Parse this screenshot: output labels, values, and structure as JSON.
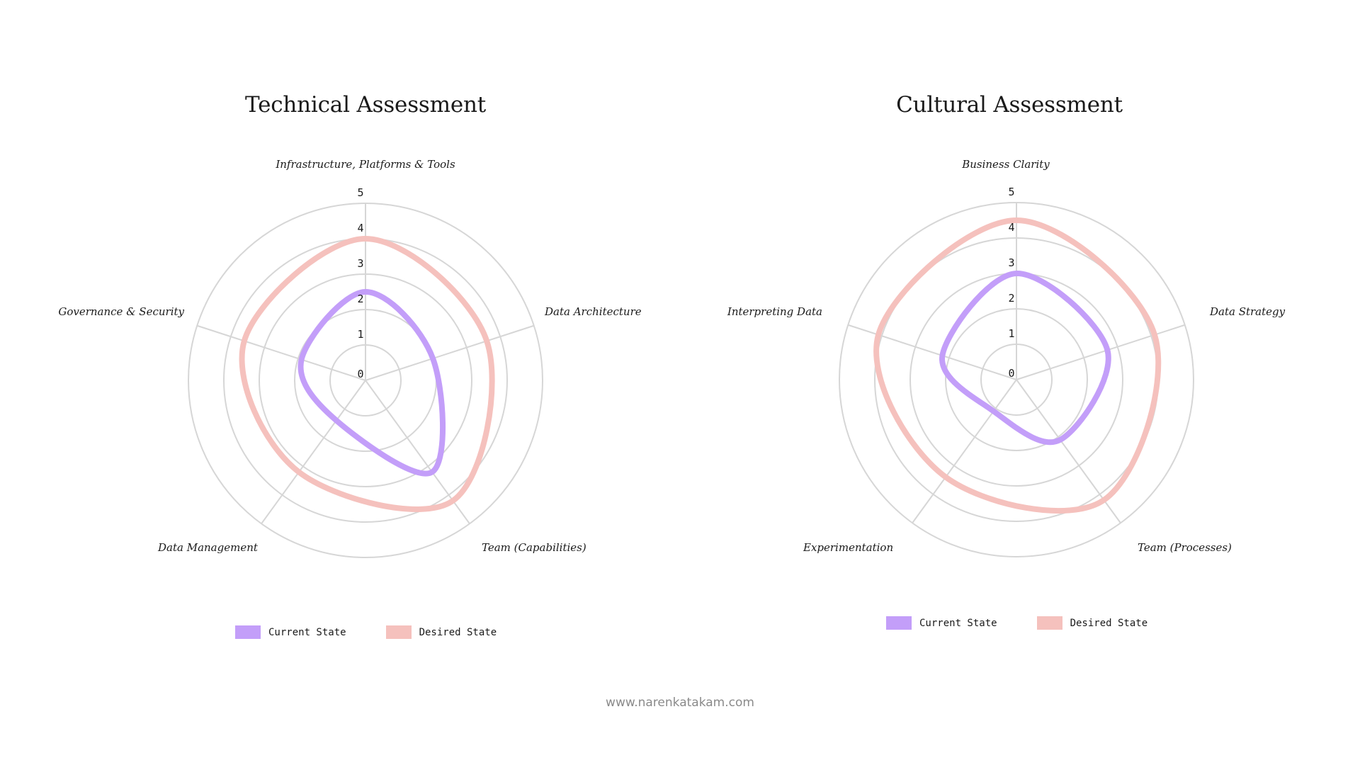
{
  "colors": {
    "current": "#c39ef9",
    "desired": "#f5c1bd",
    "grid": "#d6d6d6",
    "text": "#1a1a1a",
    "footer": "#8a8a8a"
  },
  "chart_data": [
    {
      "type": "radar",
      "title": "Technical Assessment",
      "axes": [
        "Infrastructure, Platforms & Tools",
        "Data Architecture",
        "Team (Capabilities)",
        "Data Management",
        "Governance & Security"
      ],
      "rlim": [
        0,
        5
      ],
      "ticks": [
        "0",
        "1",
        "2",
        "3",
        "4",
        "5"
      ],
      "grid": true,
      "legend_position": "bottom",
      "series": [
        {
          "name": "Current State",
          "values": [
            2.5,
            2.0,
            3.2,
            1.4,
            1.9
          ]
        },
        {
          "name": "Desired State",
          "values": [
            4.0,
            3.6,
            4.2,
            3.2,
            3.6
          ]
        }
      ]
    },
    {
      "type": "radar",
      "title": "Cultural Assessment",
      "axes": [
        "Business Clarity",
        "Data Strategy",
        "Team (Processes)",
        "Experimentation",
        "Interpreting Data"
      ],
      "rlim": [
        0,
        5
      ],
      "ticks": [
        "0",
        "1",
        "2",
        "3",
        "4",
        "5"
      ],
      "grid": true,
      "legend_position": "bottom",
      "series": [
        {
          "name": "Current State",
          "values": [
            3.0,
            2.7,
            2.1,
            1.1,
            2.2
          ]
        },
        {
          "name": "Desired State",
          "values": [
            4.5,
            4.1,
            4.2,
            3.4,
            4.1
          ]
        }
      ]
    }
  ],
  "technical": {
    "title": "Technical Assessment",
    "legend": {
      "current": "Current State",
      "desired": "Desired State"
    }
  },
  "cultural": {
    "title": "Cultural Assessment",
    "legend": {
      "current": "Current State",
      "desired": "Desired State"
    }
  },
  "footer": {
    "text": "www.narenkatakam.com"
  }
}
